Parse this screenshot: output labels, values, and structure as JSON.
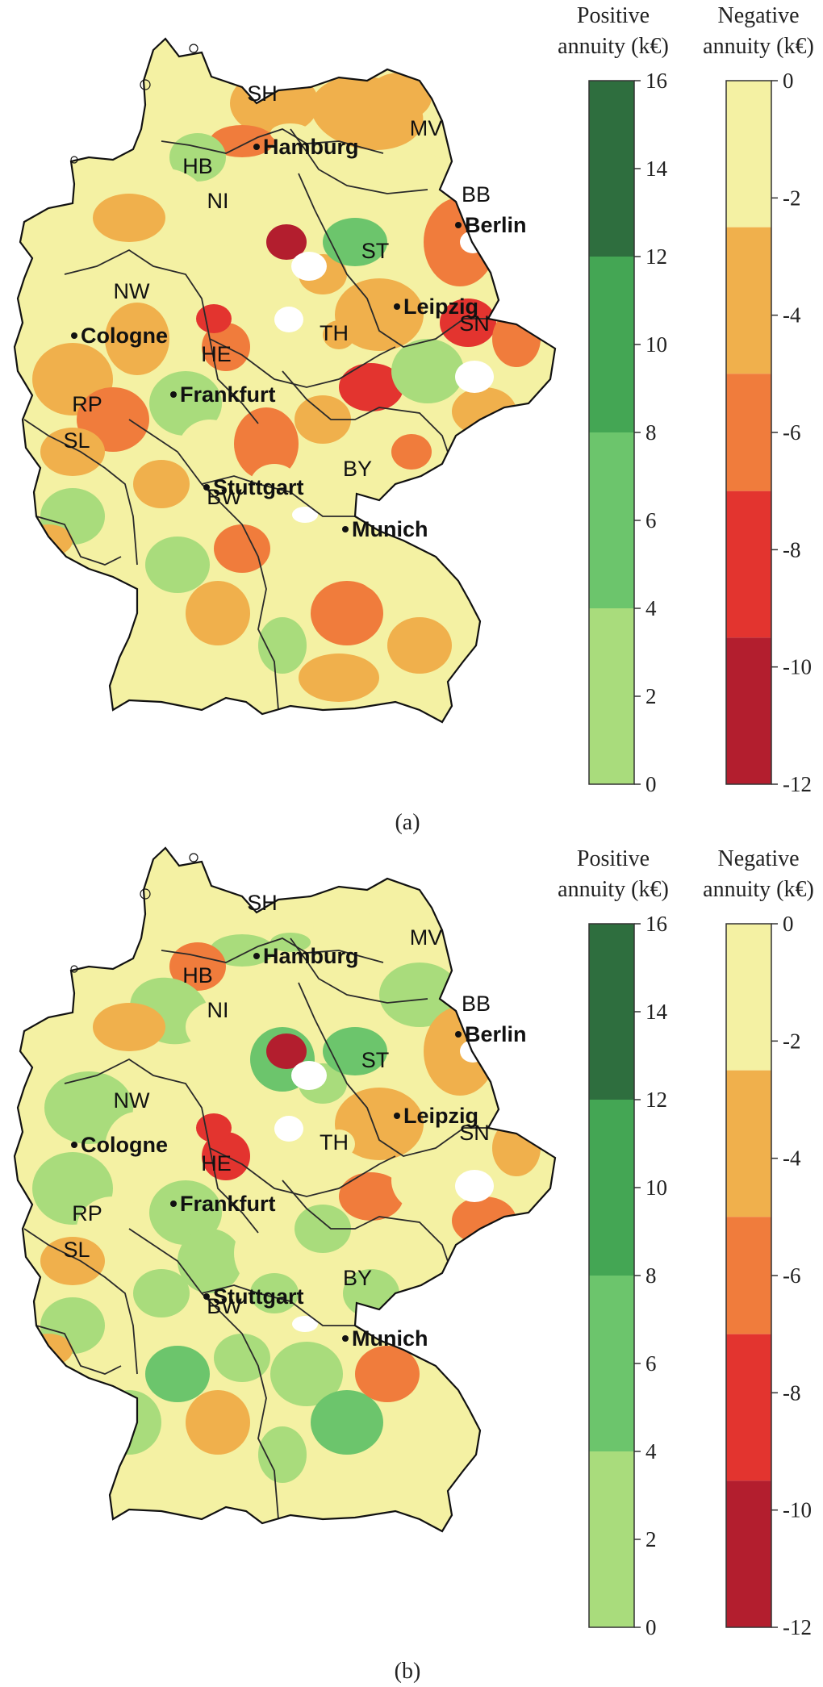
{
  "panels": [
    {
      "id": "a",
      "caption": "(a)",
      "states": [
        "SH",
        "HB",
        "NI",
        "MV",
        "BB",
        "ST",
        "NW",
        "HE",
        "TH",
        "SN",
        "RP",
        "SL",
        "BW",
        "BY"
      ],
      "cities": [
        "Hamburg",
        "Berlin",
        "Leipzig",
        "Cologne",
        "Frankfurt",
        "Stuttgart",
        "Munich"
      ],
      "scheme": "mostly-negative"
    },
    {
      "id": "b",
      "caption": "(b)",
      "states": [
        "SH",
        "HB",
        "NI",
        "MV",
        "BB",
        "ST",
        "NW",
        "HE",
        "TH",
        "SN",
        "RP",
        "SL",
        "BW",
        "BY"
      ],
      "cities": [
        "Hamburg",
        "Berlin",
        "Leipzig",
        "Cologne",
        "Frankfurt",
        "Stuttgart",
        "Munich"
      ],
      "scheme": "mixed"
    }
  ],
  "legend_positive": {
    "title_line1": "Positive",
    "title_line2": "annuity (k€)",
    "ticks": [
      "16",
      "14",
      "12",
      "10",
      "8",
      "6",
      "4",
      "2",
      "0"
    ],
    "bands": [
      {
        "from": 0,
        "to": 4,
        "color": "#a9dc7c"
      },
      {
        "from": 4,
        "to": 8,
        "color": "#6cc56c"
      },
      {
        "from": 8,
        "to": 12,
        "color": "#44a654"
      },
      {
        "from": 12,
        "to": 16,
        "color": "#2e6e3e"
      }
    ]
  },
  "legend_negative": {
    "title_line1": "Negative",
    "title_line2": "annuity (k€)",
    "ticks": [
      "0",
      "-2",
      "-4",
      "-6",
      "-8",
      "-10",
      "-12"
    ],
    "bands": [
      {
        "from": 0,
        "to": -2.5,
        "color": "#f4f1a3"
      },
      {
        "from": -2.5,
        "to": -5,
        "color": "#f0b04c"
      },
      {
        "from": -5,
        "to": -7,
        "color": "#f07c3c"
      },
      {
        "from": -7,
        "to": -9.5,
        "color": "#e3342f"
      },
      {
        "from": -9.5,
        "to": -12,
        "color": "#b31e2e"
      }
    ]
  }
}
